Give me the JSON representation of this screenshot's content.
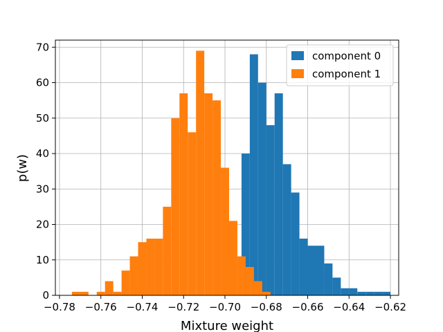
{
  "chart_data": {
    "type": "bar",
    "subtype": "histogram-overlay",
    "xlabel": "Mixture weight",
    "ylabel": "p(w)",
    "xlim": [
      -0.782,
      -0.616
    ],
    "ylim": [
      0,
      72
    ],
    "grid": true,
    "legend_position": "top-right",
    "x_ticks": [
      -0.78,
      -0.76,
      -0.74,
      -0.72,
      -0.7,
      -0.68,
      -0.66,
      -0.64,
      -0.62
    ],
    "x_tick_labels": [
      "−0.78",
      "−0.76",
      "−0.74",
      "−0.72",
      "−0.70",
      "−0.68",
      "−0.66",
      "−0.64",
      "−0.62"
    ],
    "y_ticks": [
      0,
      10,
      20,
      30,
      40,
      50,
      60,
      70
    ],
    "y_tick_labels": [
      "0",
      "10",
      "20",
      "30",
      "40",
      "50",
      "60",
      "70"
    ],
    "series": [
      {
        "name": "component 0",
        "color": "#1f77b4",
        "bins": [
          {
            "x0": -0.692,
            "x1": -0.688,
            "count": 40
          },
          {
            "x0": -0.688,
            "x1": -0.684,
            "count": 68
          },
          {
            "x0": -0.684,
            "x1": -0.68,
            "count": 60
          },
          {
            "x0": -0.68,
            "x1": -0.676,
            "count": 48
          },
          {
            "x0": -0.676,
            "x1": -0.672,
            "count": 57
          },
          {
            "x0": -0.672,
            "x1": -0.668,
            "count": 37
          },
          {
            "x0": -0.668,
            "x1": -0.664,
            "count": 29
          },
          {
            "x0": -0.664,
            "x1": -0.66,
            "count": 16
          },
          {
            "x0": -0.66,
            "x1": -0.656,
            "count": 14
          },
          {
            "x0": -0.656,
            "x1": -0.652,
            "count": 14
          },
          {
            "x0": -0.652,
            "x1": -0.648,
            "count": 9
          },
          {
            "x0": -0.648,
            "x1": -0.644,
            "count": 5
          },
          {
            "x0": -0.644,
            "x1": -0.64,
            "count": 2
          },
          {
            "x0": -0.64,
            "x1": -0.636,
            "count": 2
          },
          {
            "x0": -0.636,
            "x1": -0.632,
            "count": 1
          },
          {
            "x0": -0.632,
            "x1": -0.628,
            "count": 1
          },
          {
            "x0": -0.628,
            "x1": -0.624,
            "count": 1
          },
          {
            "x0": -0.624,
            "x1": -0.62,
            "count": 1
          }
        ]
      },
      {
        "name": "component 1",
        "color": "#ff7f0e",
        "bins": [
          {
            "x0": -0.774,
            "x1": -0.77,
            "count": 1
          },
          {
            "x0": -0.77,
            "x1": -0.766,
            "count": 1
          },
          {
            "x0": -0.762,
            "x1": -0.758,
            "count": 1
          },
          {
            "x0": -0.758,
            "x1": -0.754,
            "count": 4
          },
          {
            "x0": -0.754,
            "x1": -0.75,
            "count": 1
          },
          {
            "x0": -0.75,
            "x1": -0.746,
            "count": 7
          },
          {
            "x0": -0.746,
            "x1": -0.742,
            "count": 11
          },
          {
            "x0": -0.742,
            "x1": -0.738,
            "count": 15
          },
          {
            "x0": -0.738,
            "x1": -0.734,
            "count": 16
          },
          {
            "x0": -0.734,
            "x1": -0.73,
            "count": 16
          },
          {
            "x0": -0.73,
            "x1": -0.726,
            "count": 25
          },
          {
            "x0": -0.726,
            "x1": -0.722,
            "count": 50
          },
          {
            "x0": -0.722,
            "x1": -0.718,
            "count": 57
          },
          {
            "x0": -0.718,
            "x1": -0.714,
            "count": 46
          },
          {
            "x0": -0.714,
            "x1": -0.71,
            "count": 69
          },
          {
            "x0": -0.71,
            "x1": -0.706,
            "count": 57
          },
          {
            "x0": -0.706,
            "x1": -0.702,
            "count": 55
          },
          {
            "x0": -0.702,
            "x1": -0.698,
            "count": 36
          },
          {
            "x0": -0.698,
            "x1": -0.694,
            "count": 21
          },
          {
            "x0": -0.694,
            "x1": -0.69,
            "count": 11
          },
          {
            "x0": -0.69,
            "x1": -0.686,
            "count": 8
          },
          {
            "x0": -0.686,
            "x1": -0.682,
            "count": 4
          },
          {
            "x0": -0.682,
            "x1": -0.678,
            "count": 1
          }
        ]
      }
    ]
  }
}
